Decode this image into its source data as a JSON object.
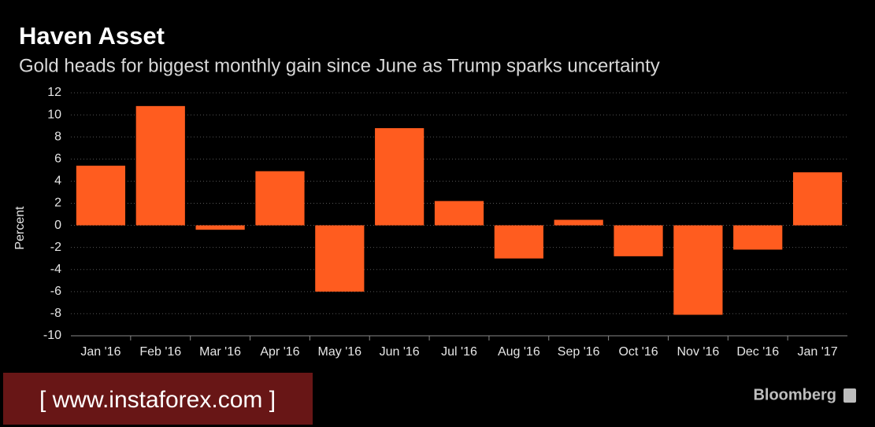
{
  "chart_data": {
    "type": "bar",
    "title": "Haven Asset",
    "subtitle": "Gold heads for biggest monthly gain since June as Trump sparks uncertainty",
    "y_label": "Percent",
    "categories": [
      "Jan '16",
      "Feb '16",
      "Mar '16",
      "Apr '16",
      "May '16",
      "Jun '16",
      "Jul '16",
      "Aug '16",
      "Sep '16",
      "Oct '16",
      "Nov '16",
      "Dec '16",
      "Jan '17"
    ],
    "values": [
      5.4,
      10.8,
      -0.4,
      4.9,
      -6.0,
      8.8,
      2.2,
      -3.0,
      0.5,
      -2.8,
      -8.1,
      -2.2,
      4.8
    ],
    "color": "#ff5c1f",
    "ylim": [
      -10,
      12
    ],
    "yticks": [
      -10,
      -8,
      -6,
      -4,
      -2,
      0,
      2,
      4,
      6,
      8,
      10,
      12
    ],
    "grid": true,
    "brand": "Bloomberg",
    "watermark": "[ www.instaforex.com ]"
  }
}
